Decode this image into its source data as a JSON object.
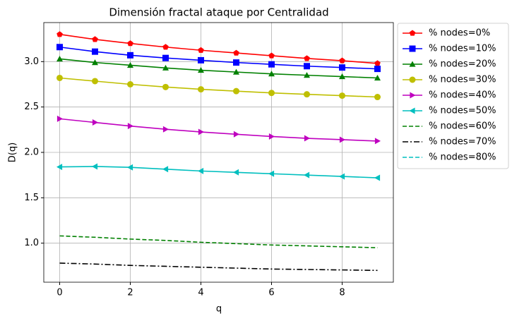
{
  "chart_data": {
    "type": "line",
    "title": "Dimensión fractal ataque por Centralidad",
    "xlabel": "q",
    "ylabel": "D(q)",
    "x": [
      0,
      1,
      2,
      3,
      4,
      5,
      6,
      7,
      8,
      9
    ],
    "xlim": [
      -0.45,
      9.45
    ],
    "xticks": [
      0,
      2,
      4,
      6,
      8
    ],
    "ylim": [
      0.57,
      3.43
    ],
    "yticks": [
      {
        "value": 1,
        "label": "1.0"
      },
      1.5,
      {
        "value": 2,
        "label": "2.0"
      },
      2.5,
      {
        "value": 3,
        "label": "3.0"
      }
    ],
    "grid": true,
    "legend": "outside upper right",
    "series": [
      {
        "name": "% nodes=0%",
        "color": "#ff0000",
        "marker": "pentagon",
        "linestyle": "solid",
        "values": [
          3.3,
          3.245,
          3.2,
          3.16,
          3.125,
          3.095,
          3.065,
          3.035,
          3.01,
          2.98
        ]
      },
      {
        "name": "% nodes=10%",
        "color": "#0000ff",
        "marker": "square",
        "linestyle": "solid",
        "values": [
          3.16,
          3.11,
          3.07,
          3.04,
          3.015,
          2.99,
          2.97,
          2.95,
          2.935,
          2.92
        ]
      },
      {
        "name": "% nodes=20%",
        "color": "#008000",
        "marker": "triangle-up",
        "linestyle": "solid",
        "values": [
          3.03,
          2.99,
          2.96,
          2.93,
          2.905,
          2.885,
          2.865,
          2.85,
          2.835,
          2.82
        ]
      },
      {
        "name": "% nodes=30%",
        "color": "#bfbf00",
        "marker": "circle",
        "linestyle": "solid",
        "values": [
          2.82,
          2.785,
          2.75,
          2.72,
          2.695,
          2.675,
          2.655,
          2.64,
          2.625,
          2.61
        ]
      },
      {
        "name": "% nodes=40%",
        "color": "#bf00bf",
        "marker": "triangle-right",
        "linestyle": "solid",
        "values": [
          2.37,
          2.33,
          2.29,
          2.255,
          2.225,
          2.2,
          2.175,
          2.155,
          2.14,
          2.125
        ]
      },
      {
        "name": "% nodes=50%",
        "color": "#00bfbf",
        "marker": "triangle-left",
        "linestyle": "solid",
        "values": [
          1.84,
          1.845,
          1.835,
          1.815,
          1.795,
          1.78,
          1.765,
          1.75,
          1.735,
          1.72
        ]
      },
      {
        "name": "% nodes=60%",
        "color": "#008000",
        "marker": "none",
        "linestyle": "dashed",
        "values": [
          1.08,
          1.065,
          1.045,
          1.03,
          1.01,
          0.995,
          0.98,
          0.97,
          0.96,
          0.95
        ]
      },
      {
        "name": "% nodes=70%",
        "color": "#000000",
        "marker": "none",
        "linestyle": "dashdot",
        "values": [
          0.78,
          0.77,
          0.755,
          0.745,
          0.735,
          0.725,
          0.715,
          0.71,
          0.705,
          0.7
        ]
      },
      {
        "name": "% nodes=80%",
        "color": "#00bfbf",
        "marker": "none",
        "linestyle": "dashed",
        "values": [
          null,
          null,
          null,
          null,
          null,
          null,
          null,
          null,
          null,
          null
        ]
      }
    ]
  }
}
